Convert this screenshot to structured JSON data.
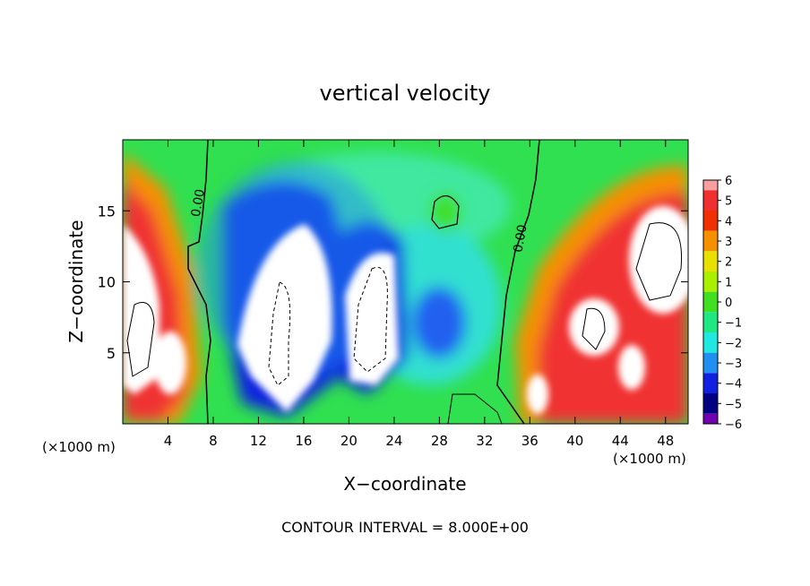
{
  "chart_data": {
    "type": "heatmap",
    "title": "vertical velocity",
    "xlabel": "X−coordinate",
    "ylabel": "Z−coordinate",
    "x_unit_left": "(×1000 m)",
    "x_unit_right": "(×1000 m)",
    "xlim": [
      0,
      50
    ],
    "ylim": [
      0,
      20
    ],
    "x_ticks": [
      4,
      8,
      12,
      16,
      20,
      24,
      28,
      32,
      36,
      40,
      44,
      48
    ],
    "y_ticks": [
      5,
      10,
      15
    ],
    "colorbar": {
      "min": -6,
      "max": 6,
      "tick_values": [
        6,
        5,
        4,
        3,
        2,
        1,
        0,
        -1,
        -2,
        -3,
        -4,
        -5,
        -6
      ],
      "tick_labels": [
        "6",
        "5",
        "4",
        "3",
        "2",
        "1",
        "0",
        "−1",
        "−2",
        "−3",
        "−4",
        "−5",
        "−6"
      ],
      "colors": [
        "#f8a0a0",
        "#f03030",
        "#f03000",
        "#f59000",
        "#e8e000",
        "#a8f000",
        "#40e020",
        "#20e880",
        "#20e8e0",
        "#2090f0",
        "#1020e0",
        "#000080",
        "#7000b0"
      ]
    },
    "contour_labels": [
      {
        "text": "0.00",
        "x": 7,
        "z": 15.5
      },
      {
        "text": "0.00",
        "x": 35.5,
        "z": 13
      }
    ],
    "regions": [
      {
        "label": "background",
        "value": 0.3
      },
      {
        "label": "upper-left updraft band",
        "value": 4.5
      },
      {
        "label": "left core (off-scale)",
        "value": 7
      },
      {
        "label": "downdraft plume 12-20 km",
        "value": -5
      },
      {
        "label": "downdraft core (off-scale)",
        "value": -7
      },
      {
        "label": "downdraft plume 20-25 km",
        "value": -5
      },
      {
        "label": "downdraft core 2 (off-scale)",
        "value": -7
      },
      {
        "label": "weak downdraft 26-32 km",
        "value": -2.5
      },
      {
        "label": "updraft 36-50 km",
        "value": 4.5
      },
      {
        "label": "right core (off-scale)",
        "value": 7
      }
    ],
    "grid": false,
    "legend": "right"
  },
  "footer": "CONTOUR INTERVAL = 8.000E+00"
}
